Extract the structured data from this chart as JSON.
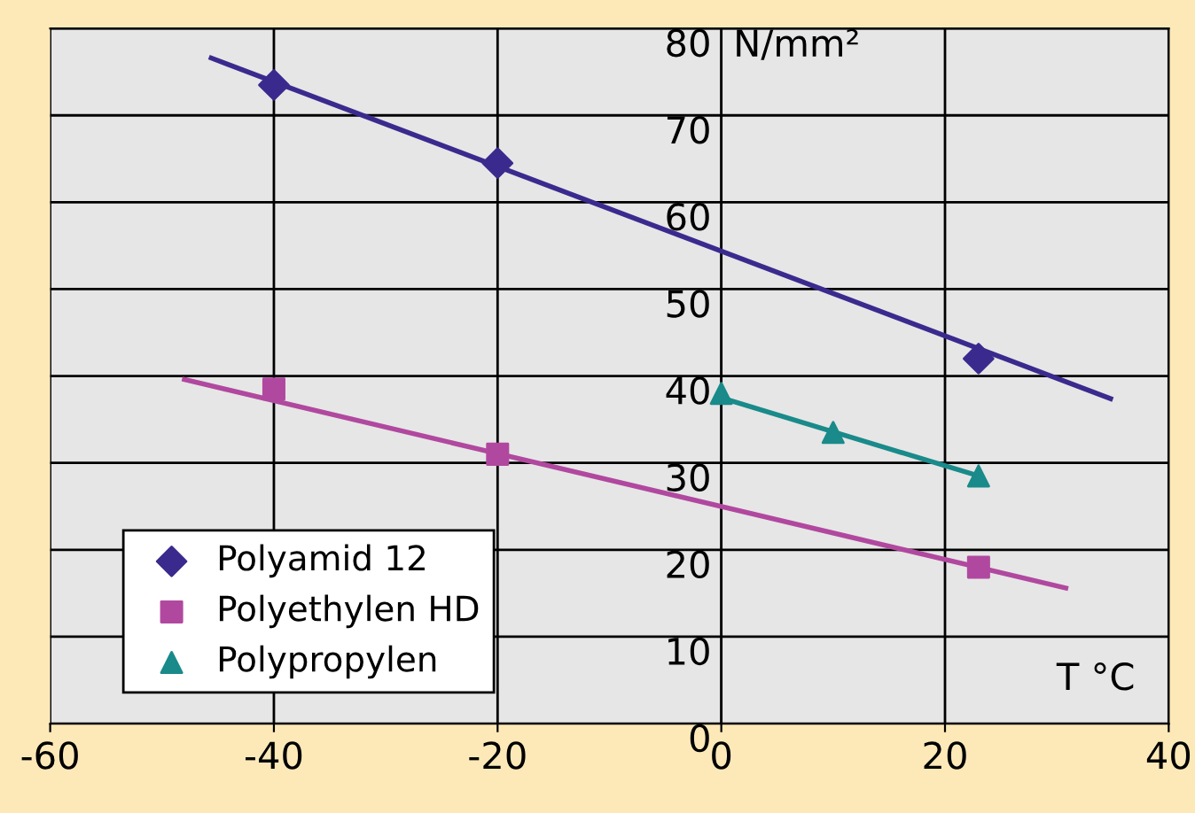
{
  "chart_data": {
    "type": "scatter",
    "ylabel": "N/mm²",
    "xlabel": "T °C",
    "xlim": [
      -60,
      40
    ],
    "xticks": [
      -60,
      -40,
      -20,
      0,
      20,
      40
    ],
    "ylim": [
      0,
      80
    ],
    "yticks": [
      0,
      10,
      20,
      30,
      40,
      50,
      60,
      70,
      80
    ],
    "grid": true,
    "legend": "bottom left",
    "series": [
      {
        "name": "Polyamid 12",
        "color": "#3b2a8e",
        "marker": "diamond",
        "x": [
          -40,
          -20,
          23
        ],
        "values": [
          73.5,
          64.5,
          42
        ]
      },
      {
        "name": "Polyethylen HD",
        "color": "#b1489f",
        "marker": "square",
        "x": [
          -40,
          -20,
          23
        ],
        "values": [
          38.5,
          31,
          18
        ]
      },
      {
        "name": "Polypropylen",
        "color": "#1a8a8a",
        "marker": "triangle",
        "x": [
          0,
          10,
          23
        ],
        "values": [
          38,
          33.5,
          28.5
        ]
      },
      {
        "type": "line",
        "color": "#3b2a8e",
        "x": [
          -45.6,
          34.8
        ],
        "values": [
          76.6,
          37.4
        ]
      },
      {
        "type": "line",
        "color": "#b1489f",
        "x": [
          -48,
          30.8
        ],
        "values": [
          39.6,
          15.6
        ]
      },
      {
        "type": "line",
        "color": "#1a8a8a",
        "x": [
          0,
          23
        ],
        "values": [
          37.5,
          28.5
        ]
      }
    ]
  }
}
